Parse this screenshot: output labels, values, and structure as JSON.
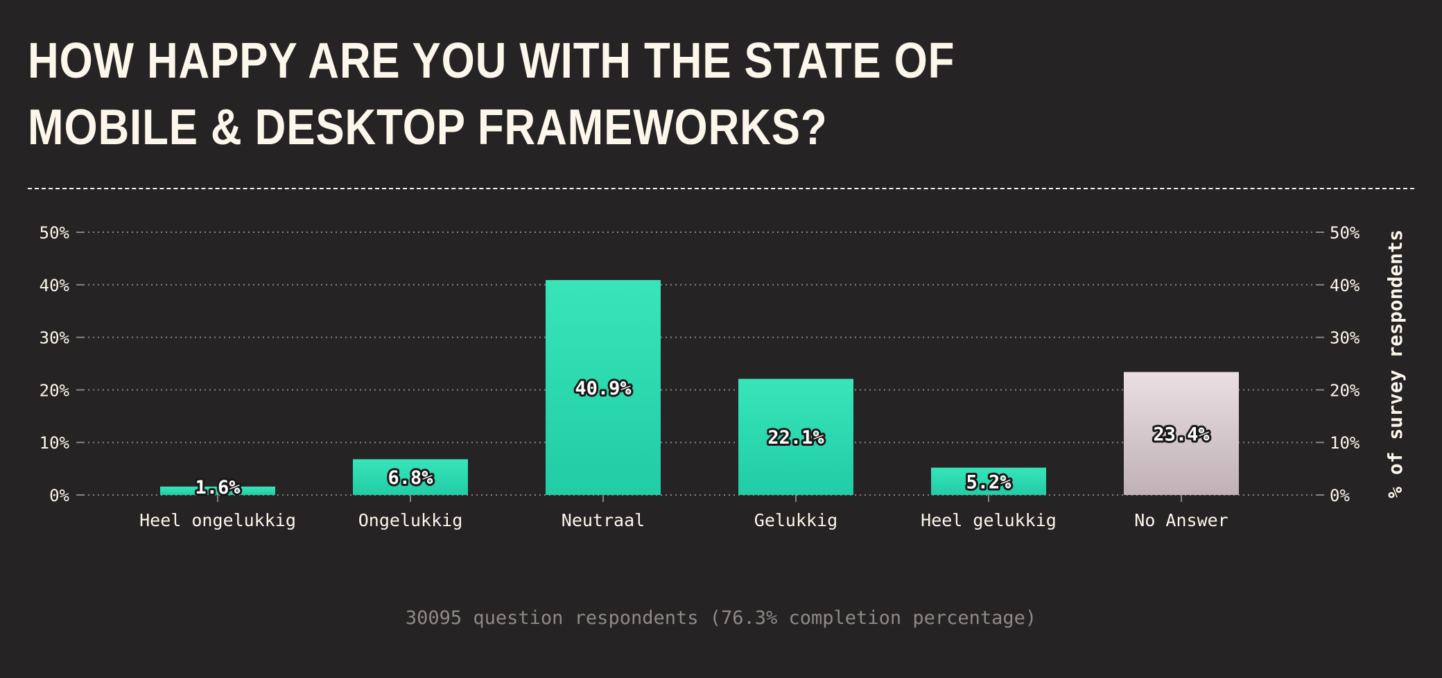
{
  "header": {
    "title": "HOW HAPPY ARE YOU WITH THE STATE OF MOBILE & DESKTOP FRAMEWORKS?"
  },
  "footer": {
    "note": "30095 question respondents (76.3% completion percentage)"
  },
  "colors": {
    "background": "#262324",
    "text": "#fdf6ea",
    "bar_top": "#38e5b8",
    "bar_bottom": "#21cca6",
    "no_answer_top": "#ebdfe3",
    "no_answer_bottom": "#bfb1b5",
    "grid": "#8a8582",
    "note": "#8f8a86"
  },
  "chart_data": {
    "type": "bar",
    "categories": [
      "Heel ongelukkig",
      "Ongelukkig",
      "Neutraal",
      "Gelukkig",
      "Heel gelukkig",
      "No Answer"
    ],
    "values": [
      1.6,
      6.8,
      40.9,
      22.1,
      5.2,
      23.4
    ],
    "value_labels": [
      "1.6%",
      "6.8%",
      "40.9%",
      "22.1%",
      "5.2%",
      "23.4%"
    ],
    "ylim": [
      0,
      50
    ],
    "yticks": [
      0,
      10,
      20,
      30,
      40,
      50
    ],
    "ytick_labels": [
      "0%",
      "10%",
      "20%",
      "30%",
      "40%",
      "50%"
    ],
    "ylabel": "% of survey respondents",
    "grid": true,
    "highlight_category": "No Answer"
  }
}
